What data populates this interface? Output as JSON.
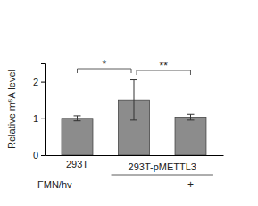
{
  "chart_data": {
    "type": "bar",
    "y_label": "Relative m⁶A level",
    "categories": [
      "293T",
      null,
      null
    ],
    "values": [
      1.0,
      1.5,
      1.03
    ],
    "errors": [
      0.07,
      0.55,
      0.08
    ],
    "color": "#8c8c8c",
    "ylim": [
      0,
      2.5
    ],
    "yticks": [
      0,
      1,
      2
    ],
    "groups": [
      {
        "label": "293T-pMETTL3",
        "from": 1,
        "to": 2
      }
    ],
    "rows": [
      {
        "label": "FMN/hv",
        "values": [
          null,
          null,
          "+"
        ]
      }
    ],
    "significance": [
      {
        "from": 0,
        "to": 1,
        "label": "*"
      },
      {
        "from": 1,
        "to": 2,
        "label": "**"
      }
    ]
  }
}
